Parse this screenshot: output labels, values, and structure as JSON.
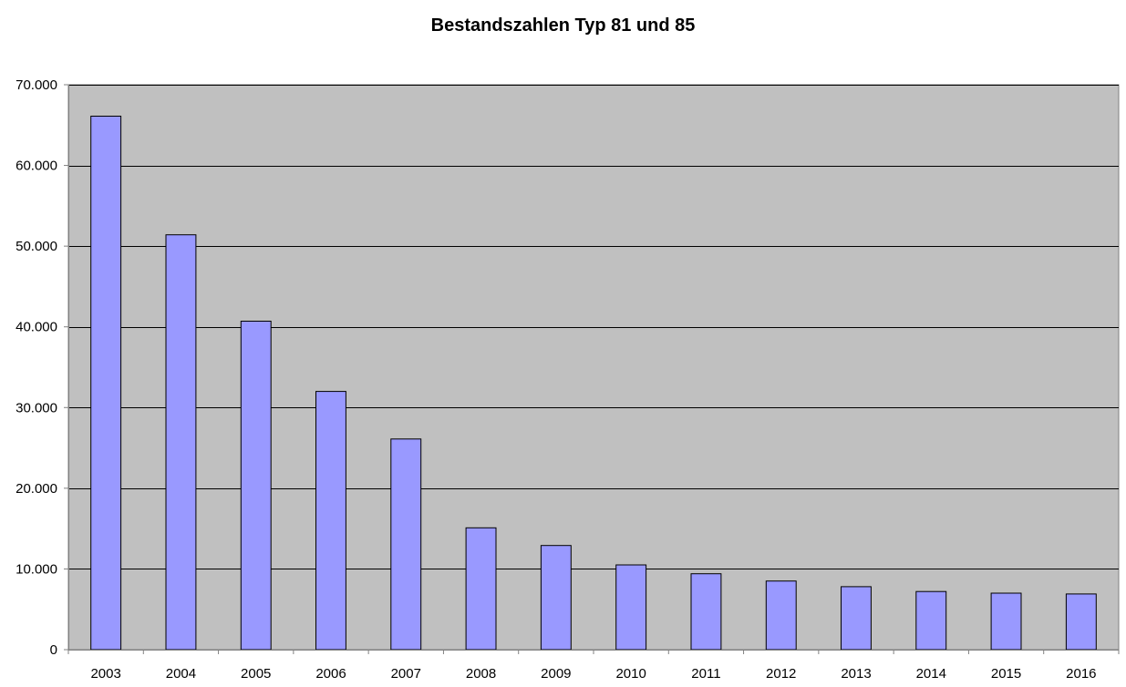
{
  "chart_data": {
    "type": "bar",
    "title": "Bestandszahlen Typ 81 und 85",
    "categories": [
      "2003",
      "2004",
      "2005",
      "2006",
      "2007",
      "2008",
      "2009",
      "2010",
      "2011",
      "2012",
      "2013",
      "2014",
      "2015",
      "2016"
    ],
    "values": [
      66100,
      51400,
      40700,
      32000,
      26100,
      15100,
      12900,
      10500,
      9400,
      8500,
      7800,
      7200,
      7000,
      6900
    ],
    "ylim": [
      0,
      70000
    ],
    "yticks": [
      0,
      10000,
      20000,
      30000,
      40000,
      50000,
      60000,
      70000
    ],
    "ytick_labels": [
      "0",
      "10.000",
      "20.000",
      "30.000",
      "40.000",
      "50.000",
      "60.000",
      "70.000"
    ],
    "xlabel": "",
    "ylabel": "",
    "grid": true,
    "legend": false,
    "colors": {
      "bar_fill": "#9999FF",
      "bar_stroke": "#000000",
      "plot_background": "#C0C0C0",
      "gridline": "#000000",
      "axis": "#808080"
    }
  }
}
